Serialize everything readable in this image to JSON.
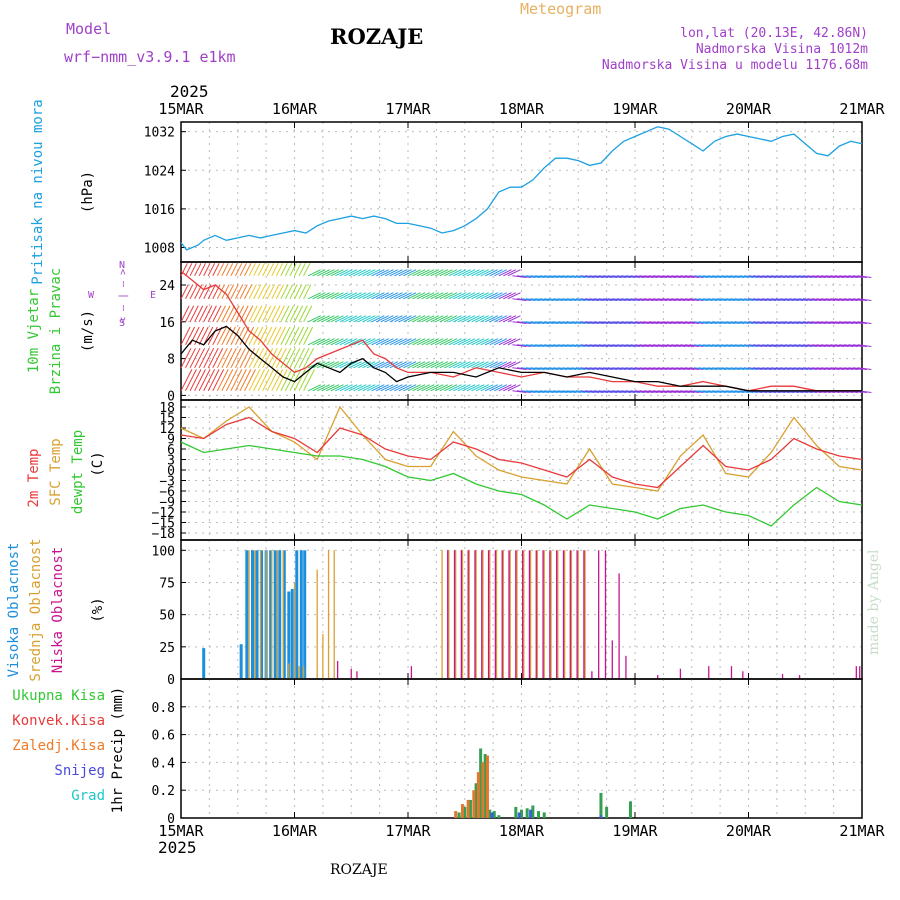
{
  "header": {
    "model_label": "Model",
    "model_name": "wrf−nmm_v3.9.1  e1km",
    "station": "ROZAJE",
    "meteogram_label": "Meteogram",
    "lonlat": "lon,lat (20.13E, 42.86N)",
    "altitude": "Nadmorska Visina 1012m",
    "model_altitude": "Nadmorska Visina u modelu 1176.68m",
    "year_top": "2025",
    "year_bottom": "2025",
    "footer_station": "ROZAJE",
    "watermark": "made by Angel"
  },
  "colors": {
    "pressure": "#1ca0e0",
    "temp2m": "#e83a3a",
    "sfc_temp": "#d9a030",
    "dewpt": "#32c832",
    "high_cloud": "#1c8fdc",
    "mid_cloud": "#d9a030",
    "low_cloud": "#c8148c",
    "title_purple": "#a040c8",
    "title_orange": "#e8b060"
  },
  "chart_data": [
    {
      "type": "line",
      "panel": "pressure",
      "ylabel_main": "Pritisak na nivou mora",
      "ylabel_unit": "(hPa)",
      "x_ticks": [
        "15MAR",
        "16MAR",
        "17MAR",
        "18MAR",
        "19MAR",
        "20MAR",
        "21MAR"
      ],
      "ylim": [
        1005,
        1034
      ],
      "yticks": [
        "1008",
        "1016",
        "1024",
        "1032"
      ],
      "x": [
        0,
        0.05,
        0.1,
        0.15,
        0.2,
        0.3,
        0.4,
        0.5,
        0.6,
        0.7,
        0.8,
        0.9,
        1.0,
        1.1,
        1.2,
        1.3,
        1.4,
        1.5,
        1.6,
        1.7,
        1.8,
        1.9,
        2.0,
        2.1,
        2.2,
        2.3,
        2.4,
        2.5,
        2.6,
        2.7,
        2.8,
        2.9,
        3.0,
        3.1,
        3.2,
        3.3,
        3.4,
        3.5,
        3.6,
        3.7,
        3.8,
        3.9,
        4.0,
        4.1,
        4.2,
        4.3,
        4.4,
        4.5,
        4.6,
        4.7,
        4.8,
        4.9,
        5.0,
        5.1,
        5.2,
        5.3,
        5.4,
        5.5,
        5.6,
        5.7,
        5.8,
        5.9,
        6.0
      ],
      "y": [
        1009,
        1007.5,
        1008,
        1008.5,
        1009.5,
        1010.5,
        1009.5,
        1010,
        1010.5,
        1010,
        1010.5,
        1011,
        1011.5,
        1011,
        1012.5,
        1013.5,
        1014,
        1014.5,
        1014,
        1014.5,
        1014,
        1013,
        1013,
        1012.5,
        1012,
        1011,
        1011.5,
        1012.5,
        1014,
        1016,
        1019.5,
        1020.5,
        1020.5,
        1022,
        1024.5,
        1026.5,
        1026.5,
        1026,
        1025,
        1025.5,
        1028,
        1030,
        1031,
        1032,
        1033,
        1032.5,
        1031,
        1029.5,
        1028,
        1030,
        1031,
        1031.5,
        1031,
        1030.5,
        1030,
        1031,
        1031.5,
        1029.5,
        1027.5,
        1027,
        1029,
        1030,
        1029.5
      ]
    },
    {
      "type": "line",
      "panel": "wind",
      "ylabel_main": "10m Vjetar",
      "ylabel_sub": "Brzina i Pravac",
      "ylabel_unit": "(m/s)",
      "compass": {
        "n": "N",
        "w": "W",
        "e": "E",
        "s": "S",
        "arrows": "< — | — >"
      },
      "ylim": [
        -1,
        29
      ],
      "yticks": [
        "0",
        "8",
        "16",
        "24"
      ],
      "series": [
        {
          "name": "wind speed",
          "x": [
            0,
            0.1,
            0.2,
            0.3,
            0.4,
            0.5,
            0.6,
            0.7,
            0.8,
            0.9,
            1.0,
            1.1,
            1.2,
            1.3,
            1.4,
            1.5,
            1.6,
            1.7,
            1.8,
            1.9,
            2.0,
            2.2,
            2.4,
            2.6,
            2.8,
            3.0,
            3.2,
            3.4,
            3.6,
            3.8,
            4.0,
            4.2,
            4.4,
            4.6,
            4.8,
            5.0,
            5.2,
            5.4,
            5.6,
            5.8,
            6.0
          ],
          "y": [
            9,
            12,
            11,
            14,
            15,
            13,
            10,
            8,
            6,
            4,
            3,
            5,
            7,
            6,
            5,
            7,
            8,
            6,
            5,
            3,
            4,
            5,
            5,
            4,
            6,
            5,
            5,
            4,
            5,
            4,
            3,
            3,
            2,
            2,
            2,
            1,
            1,
            1,
            1,
            1,
            1
          ]
        },
        {
          "name": "wind gust",
          "x": [
            0,
            0.1,
            0.2,
            0.3,
            0.4,
            0.5,
            0.6,
            0.7,
            0.8,
            0.9,
            1.0,
            1.1,
            1.2,
            1.3,
            1.4,
            1.5,
            1.6,
            1.7,
            1.8,
            1.9,
            2.0,
            2.2,
            2.4,
            2.6,
            2.8,
            3.0,
            3.2,
            3.4,
            3.6,
            3.8,
            4.0,
            4.2,
            4.4,
            4.6,
            4.8,
            5.0,
            5.2,
            5.4,
            5.6,
            5.8,
            6.0
          ],
          "y": [
            27,
            25,
            23,
            24,
            22,
            18,
            14,
            12,
            9,
            7,
            5,
            6,
            8,
            9,
            10,
            11,
            12,
            9,
            8,
            6,
            5,
            5,
            4,
            6,
            5,
            4,
            5,
            4,
            4,
            3,
            3,
            2,
            2,
            3,
            2,
            1,
            2,
            2,
            1,
            1,
            1
          ]
        }
      ]
    },
    {
      "type": "line",
      "panel": "temperature",
      "ylabel_main": "2m Temp",
      "ylabel_sub": "SFC Temp",
      "ylabel_sub2": "dewpt Temp",
      "ylabel_unit": "(C)",
      "ylim": [
        -20,
        20
      ],
      "yticks": [
        "18",
        "15",
        "12",
        "9",
        "6",
        "3",
        "0",
        "−3",
        "−6",
        "−9",
        "−12",
        "−15",
        "−18"
      ],
      "series": [
        {
          "name": "2m Temp",
          "x": [
            0,
            0.2,
            0.4,
            0.6,
            0.8,
            1.0,
            1.2,
            1.4,
            1.6,
            1.8,
            2.0,
            2.2,
            2.4,
            2.6,
            2.8,
            3.0,
            3.2,
            3.4,
            3.6,
            3.8,
            4.0,
            4.2,
            4.4,
            4.6,
            4.8,
            5.0,
            5.2,
            5.4,
            5.6,
            5.8,
            6.0
          ],
          "y": [
            10,
            9,
            13,
            15,
            11,
            9,
            5,
            12,
            10,
            6,
            4,
            3,
            8,
            6,
            3,
            2,
            0,
            -2,
            3,
            -2,
            -4,
            -5,
            1,
            7,
            1,
            0,
            3,
            9,
            6,
            4,
            3
          ]
        },
        {
          "name": "SFC Temp",
          "x": [
            0,
            0.2,
            0.4,
            0.6,
            0.8,
            1.0,
            1.2,
            1.4,
            1.6,
            1.8,
            2.0,
            2.2,
            2.4,
            2.6,
            2.8,
            3.0,
            3.2,
            3.4,
            3.6,
            3.8,
            4.0,
            4.2,
            4.4,
            4.6,
            4.8,
            5.0,
            5.2,
            5.4,
            5.6,
            5.8,
            6.0
          ],
          "y": [
            12,
            9,
            14,
            18,
            11,
            8,
            3,
            18,
            10,
            3,
            1,
            1,
            11,
            4,
            0,
            -2,
            -3,
            -4,
            6,
            -4,
            -5,
            -6,
            4,
            10,
            -1,
            -2,
            5,
            15,
            7,
            1,
            0
          ]
        },
        {
          "name": "dewpt Temp",
          "x": [
            0,
            0.2,
            0.4,
            0.6,
            0.8,
            1.0,
            1.2,
            1.4,
            1.6,
            1.8,
            2.0,
            2.2,
            2.4,
            2.6,
            2.8,
            3.0,
            3.2,
            3.4,
            3.6,
            3.8,
            4.0,
            4.2,
            4.4,
            4.6,
            4.8,
            5.0,
            5.2,
            5.4,
            5.6,
            5.8,
            6.0
          ],
          "y": [
            8,
            5,
            6,
            7,
            6,
            5,
            4,
            4,
            3,
            1,
            -2,
            -3,
            -1,
            -4,
            -6,
            -7,
            -10,
            -14,
            -10,
            -11,
            -12,
            -14,
            -11,
            -10,
            -12,
            -13,
            -16,
            -10,
            -5,
            -9,
            -10
          ]
        }
      ]
    },
    {
      "type": "bar",
      "panel": "cloud",
      "ylabel_main": "Visoka Oblacnost",
      "ylabel_sub": "Srednja Oblacnost",
      "ylabel_sub2": "Niska  Oblacnost",
      "ylabel_unit": "(%)",
      "ylim": [
        0,
        108
      ],
      "yticks": [
        "0",
        "25",
        "50",
        "75",
        "100"
      ],
      "series": [
        {
          "name": "Visoka Oblacnost",
          "x": [
            0.2,
            0.53,
            0.58,
            0.63,
            0.67,
            0.71,
            0.75,
            0.79,
            0.83,
            0.87,
            0.91,
            0.95,
            0.98,
            1.02,
            1.06,
            1.09
          ],
          "values": [
            24,
            27,
            100,
            100,
            100,
            100,
            100,
            100,
            100,
            100,
            100,
            68,
            70,
            100,
            100,
            100
          ]
        },
        {
          "name": "Srednja Oblacnost",
          "x": [
            0.6,
            0.65,
            0.7,
            0.75,
            0.8,
            0.85,
            0.9,
            0.95,
            1.0,
            1.04,
            1.08,
            1.2,
            1.25,
            1.3,
            1.35,
            2.3,
            2.36,
            2.42,
            2.48,
            2.54,
            2.6,
            2.66,
            2.72,
            2.78,
            2.84,
            2.9,
            2.96,
            3.02,
            3.08,
            3.14,
            3.2,
            3.26,
            3.32,
            3.38,
            3.44,
            3.5,
            3.56
          ],
          "values": [
            100,
            100,
            100,
            100,
            100,
            100,
            100,
            12,
            75,
            10,
            10,
            85,
            35,
            100,
            100,
            100,
            100,
            100,
            100,
            100,
            100,
            100,
            100,
            100,
            100,
            100,
            100,
            100,
            100,
            100,
            100,
            100,
            100,
            100,
            100,
            100,
            100
          ]
        },
        {
          "name": "Niska  Oblacnost",
          "x": [
            1.38,
            1.5,
            1.55,
            2.03,
            2.35,
            2.41,
            2.47,
            2.53,
            2.59,
            2.65,
            2.71,
            2.77,
            2.83,
            2.89,
            2.95,
            3.01,
            3.07,
            3.13,
            3.19,
            3.25,
            3.31,
            3.37,
            3.43,
            3.49,
            3.55,
            3.62,
            3.68,
            3.74,
            3.8,
            3.86,
            3.92,
            4.2,
            4.4,
            4.65,
            4.85,
            4.95,
            5.3,
            5.45,
            5.95,
            5.98
          ],
          "values": [
            14,
            8,
            6,
            10,
            100,
            100,
            100,
            100,
            100,
            100,
            100,
            100,
            100,
            100,
            100,
            100,
            100,
            100,
            100,
            100,
            100,
            100,
            100,
            100,
            100,
            6,
            100,
            100,
            30,
            82,
            18,
            3,
            8,
            10,
            10,
            6,
            4,
            3,
            10,
            10
          ]
        }
      ]
    },
    {
      "type": "bar",
      "panel": "precip",
      "legend": [
        "Ukupna  Kisa",
        "Konvek.Kisa",
        "Zaledj.Kisa",
        "Snijeg",
        "Grad"
      ],
      "ylabel_unit": "1hr Precip (mm)",
      "x_ticks": [
        "15MAR",
        "16MAR",
        "17MAR",
        "18MAR",
        "19MAR",
        "20MAR",
        "21MAR"
      ],
      "ylim": [
        0,
        1.0
      ],
      "yticks": [
        "0",
        "0.2",
        "0.4",
        "0.6",
        "0.8"
      ],
      "series": [
        {
          "name": "Ukupna  Kisa",
          "x": [
            2.45,
            2.5,
            2.55,
            2.6,
            2.64,
            2.68,
            2.72,
            2.76,
            2.8,
            2.95,
            3.0,
            3.05,
            3.1,
            3.15,
            3.2,
            3.7,
            3.75,
            3.96
          ],
          "values": [
            0.04,
            0.08,
            0.13,
            0.25,
            0.5,
            0.46,
            0.06,
            0.05,
            0.02,
            0.08,
            0.06,
            0.07,
            0.09,
            0.05,
            0.04,
            0.18,
            0.08,
            0.12
          ]
        },
        {
          "name": "Zaledj.Kisa",
          "x": [
            2.42,
            2.48,
            2.53,
            2.58,
            2.62,
            2.66,
            2.7
          ],
          "values": [
            0.05,
            0.1,
            0.13,
            0.2,
            0.33,
            0.4,
            0.45
          ]
        },
        {
          "name": "Snijeg",
          "x": [
            2.74,
            2.98,
            3.08,
            3.7
          ],
          "values": [
            0.04,
            0.04,
            0.06,
            0.02
          ]
        }
      ]
    }
  ]
}
